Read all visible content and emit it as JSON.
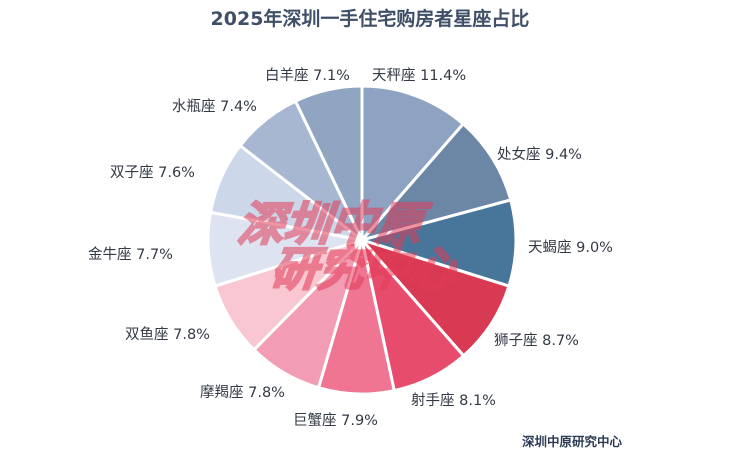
{
  "chart_data": {
    "type": "pie",
    "title": "2025年深圳一手住宅购房者星座占比",
    "categories": [
      "天秤座",
      "处女座",
      "天蝎座",
      "狮子座",
      "射手座",
      "巨蟹座",
      "摩羯座",
      "双鱼座",
      "金牛座",
      "双子座",
      "水瓶座",
      "白羊座"
    ],
    "values": [
      11.4,
      9.4,
      9.0,
      8.7,
      8.1,
      7.9,
      7.8,
      7.8,
      7.7,
      7.6,
      7.4,
      7.1
    ],
    "labels": [
      "天秤座 11.4%",
      "处女座 9.4%",
      "天蝎座 9.0%",
      "狮子座 8.7%",
      "射手座 8.1%",
      "巨蟹座 7.9%",
      "摩羯座 7.8%",
      "双鱼座 7.8%",
      "金牛座 7.7%",
      "双子座 7.6%",
      "水瓶座 7.4%",
      "白羊座 7.1%"
    ],
    "colors": [
      "#8da3c1",
      "#6c86a6",
      "#48769a",
      "#d93a53",
      "#e84c6d",
      "#ef7592",
      "#f29db3",
      "#f9c7d1",
      "#dde3f1",
      "#cdd7ea",
      "#a7b7d1",
      "#8fa5c2"
    ],
    "unit": "%",
    "start_angle_deg": 0,
    "direction": "clockwise"
  },
  "watermark": {
    "line1": "深圳中原",
    "line2": "研究中心"
  },
  "source": "深圳中原研究中心"
}
